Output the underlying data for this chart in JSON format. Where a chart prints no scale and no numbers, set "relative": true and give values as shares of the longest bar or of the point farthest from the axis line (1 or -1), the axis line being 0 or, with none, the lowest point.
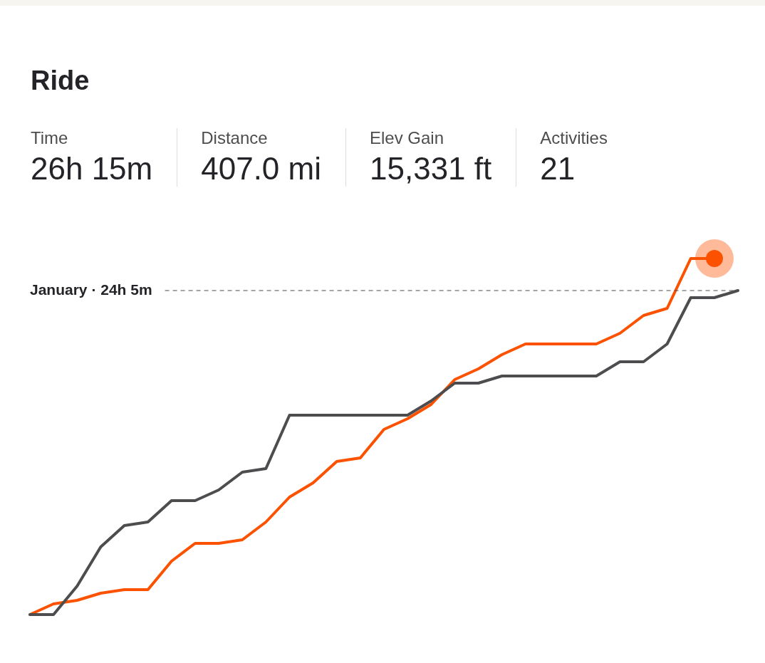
{
  "chart_data": {
    "type": "line",
    "title": "Ride",
    "relative": true,
    "marker": "none",
    "line_style": "solid",
    "categories": [
      null,
      null,
      null,
      null,
      null,
      null,
      null,
      null,
      null,
      null,
      null,
      null,
      null,
      null,
      null,
      null,
      null,
      null,
      null,
      null,
      null,
      null,
      null,
      null,
      null,
      null,
      null,
      null,
      null,
      null,
      null
    ],
    "annotations": [
      "Time",
      "26h 15m",
      "Distance",
      "407.0 mi",
      "Elev Gain",
      "15,331 ft",
      "Activities",
      "21"
    ],
    "ref_lines": [
      {
        "axis": "y",
        "value": 0.91,
        "label": "January · 24h 5m",
        "color": "#4d4d4f",
        "line_style": "dashed"
      }
    ],
    "series": [
      {
        "color": "#fc5200",
        "values": [
          0,
          0.03,
          0.04,
          0.06,
          0.07,
          0.07,
          0.15,
          0.2,
          0.2,
          0.21,
          0.26,
          0.33,
          0.37,
          0.43,
          0.44,
          0.52,
          0.55,
          0.59,
          0.66,
          0.69,
          0.73,
          0.76,
          0.76,
          0.76,
          0.76,
          0.79,
          0.84,
          0.86,
          1,
          1,
          null
        ]
      },
      {
        "color": "#4d4d4f",
        "values": [
          0,
          0,
          0.08,
          0.19,
          0.25,
          0.26,
          0.32,
          0.32,
          0.35,
          0.4,
          0.41,
          0.56,
          0.56,
          0.56,
          0.56,
          0.56,
          0.56,
          0.6,
          0.65,
          0.65,
          0.67,
          0.67,
          0.67,
          0.67,
          0.67,
          0.71,
          0.71,
          0.76,
          0.89,
          0.89,
          0.91
        ]
      }
    ]
  }
}
